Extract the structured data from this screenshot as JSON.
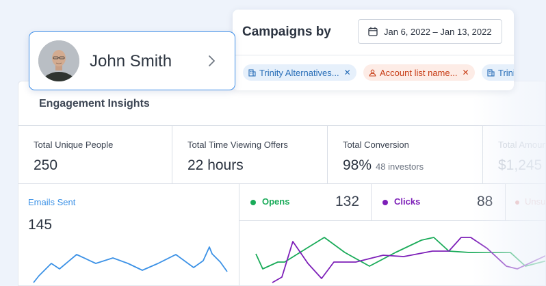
{
  "profile": {
    "name": "John Smith"
  },
  "campaigns": {
    "title": "Campaigns by",
    "date_range": "Jan 6, 2022 – Jan 13, 2022",
    "chips": [
      {
        "label": "Trinity Alternatives...",
        "icon": "building-icon",
        "color": "#2a6fb8"
      },
      {
        "label": "Account list name...",
        "icon": "user-icon",
        "color": "#c73d16"
      },
      {
        "label": "Trinity Alternatives...",
        "icon": "building-icon",
        "color": "#2a6fb8"
      }
    ]
  },
  "engagement": {
    "title": "Engagement Insights",
    "metrics": [
      {
        "label": "Total Unique People",
        "value": "250"
      },
      {
        "label": "Total Time Viewing Offers",
        "value": "22 hours"
      },
      {
        "label": "Total Conversion",
        "value": "98%",
        "sub": "48 investors"
      },
      {
        "label": "Total Amount",
        "value": "$1,245"
      }
    ],
    "emails": {
      "label": "Emails Sent",
      "value": "145"
    },
    "stats": [
      {
        "label": "Opens",
        "value": "132",
        "color": "#1aab59"
      },
      {
        "label": "Clicks",
        "value": "88",
        "color": "#7d1fb8"
      },
      {
        "label": "Unsubscribes",
        "color": "#e8a5a5"
      }
    ]
  },
  "colors": {
    "accent_blue": "#3e8ee8",
    "emails_line": "#3b91e6",
    "opens_line": "#1aab59",
    "clicks_line": "#7d1fb8"
  }
}
